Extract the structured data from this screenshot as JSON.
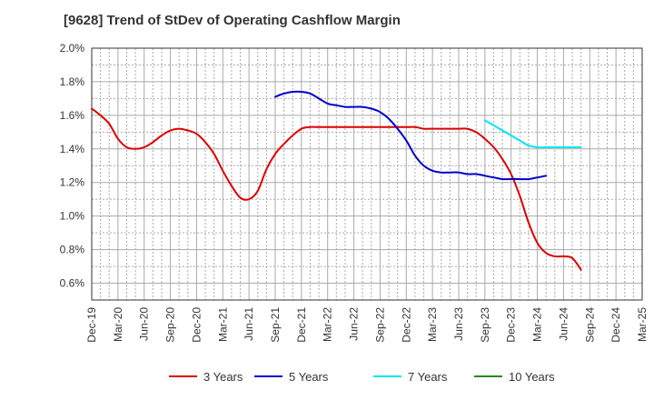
{
  "chart_data": {
    "type": "line",
    "title": "[9628]  Trend of StDev of Operating Cashflow Margin",
    "xlabel": "",
    "ylabel": "",
    "ylim": [
      0.5,
      2.0
    ],
    "y_ticks": [
      "2.0%",
      "1.8%",
      "1.6%",
      "1.4%",
      "1.2%",
      "1.0%",
      "0.8%",
      "0.6%"
    ],
    "x_ticks": [
      "Dec-19",
      "Mar-20",
      "Jun-20",
      "Sep-20",
      "Dec-20",
      "Mar-21",
      "Jun-21",
      "Sep-21",
      "Dec-21",
      "Mar-22",
      "Jun-22",
      "Sep-22",
      "Dec-22",
      "Mar-23",
      "Jun-23",
      "Sep-23",
      "Dec-23",
      "Mar-24",
      "Jun-24",
      "Sep-24",
      "Dec-24",
      "Mar-25"
    ],
    "grid": true,
    "legend_position": "bottom",
    "series": [
      {
        "name": "3 Years",
        "color": "#dd0000",
        "points": [
          [
            "Dec-19",
            1.64
          ],
          [
            "Jan-20",
            1.6
          ],
          [
            "Feb-20",
            1.55
          ],
          [
            "Mar-20",
            1.46
          ],
          [
            "Apr-20",
            1.41
          ],
          [
            "May-20",
            1.4
          ],
          [
            "Jun-20",
            1.41
          ],
          [
            "Jul-20",
            1.44
          ],
          [
            "Aug-20",
            1.48
          ],
          [
            "Sep-20",
            1.51
          ],
          [
            "Oct-20",
            1.52
          ],
          [
            "Nov-20",
            1.51
          ],
          [
            "Dec-20",
            1.49
          ],
          [
            "Jan-21",
            1.44
          ],
          [
            "Feb-21",
            1.37
          ],
          [
            "Mar-21",
            1.27
          ],
          [
            "Apr-21",
            1.18
          ],
          [
            "May-21",
            1.11
          ],
          [
            "Jun-21",
            1.1
          ],
          [
            "Jul-21",
            1.15
          ],
          [
            "Aug-21",
            1.28
          ],
          [
            "Sep-21",
            1.37
          ],
          [
            "Oct-21",
            1.43
          ],
          [
            "Nov-21",
            1.48
          ],
          [
            "Dec-21",
            1.52
          ],
          [
            "Jan-22",
            1.53
          ],
          [
            "Feb-22",
            1.53
          ],
          [
            "Mar-22",
            1.53
          ],
          [
            "Apr-22",
            1.53
          ],
          [
            "May-22",
            1.53
          ],
          [
            "Jun-22",
            1.53
          ],
          [
            "Jul-22",
            1.53
          ],
          [
            "Aug-22",
            1.53
          ],
          [
            "Sep-22",
            1.53
          ],
          [
            "Oct-22",
            1.53
          ],
          [
            "Nov-22",
            1.53
          ],
          [
            "Dec-22",
            1.53
          ],
          [
            "Jan-23",
            1.53
          ],
          [
            "Feb-23",
            1.52
          ],
          [
            "Mar-23",
            1.52
          ],
          [
            "Apr-23",
            1.52
          ],
          [
            "May-23",
            1.52
          ],
          [
            "Jun-23",
            1.52
          ],
          [
            "Jul-23",
            1.52
          ],
          [
            "Aug-23",
            1.5
          ],
          [
            "Sep-23",
            1.46
          ],
          [
            "Oct-23",
            1.41
          ],
          [
            "Nov-23",
            1.34
          ],
          [
            "Dec-23",
            1.25
          ],
          [
            "Jan-24",
            1.12
          ],
          [
            "Feb-24",
            0.96
          ],
          [
            "Mar-24",
            0.84
          ],
          [
            "Apr-24",
            0.78
          ],
          [
            "May-24",
            0.76
          ],
          [
            "Jun-24",
            0.76
          ],
          [
            "Jul-24",
            0.75
          ],
          [
            "Aug-24",
            0.68
          ]
        ]
      },
      {
        "name": "5 Years",
        "color": "#0000cc",
        "points": [
          [
            "Sep-21",
            1.71
          ],
          [
            "Oct-21",
            1.73
          ],
          [
            "Nov-21",
            1.74
          ],
          [
            "Dec-21",
            1.74
          ],
          [
            "Jan-22",
            1.73
          ],
          [
            "Feb-22",
            1.7
          ],
          [
            "Mar-22",
            1.67
          ],
          [
            "Apr-22",
            1.66
          ],
          [
            "May-22",
            1.65
          ],
          [
            "Jun-22",
            1.65
          ],
          [
            "Jul-22",
            1.65
          ],
          [
            "Aug-22",
            1.64
          ],
          [
            "Sep-22",
            1.62
          ],
          [
            "Oct-22",
            1.58
          ],
          [
            "Nov-22",
            1.52
          ],
          [
            "Dec-22",
            1.45
          ],
          [
            "Jan-23",
            1.36
          ],
          [
            "Feb-23",
            1.3
          ],
          [
            "Mar-23",
            1.27
          ],
          [
            "Apr-23",
            1.26
          ],
          [
            "May-23",
            1.26
          ],
          [
            "Jun-23",
            1.26
          ],
          [
            "Jul-23",
            1.25
          ],
          [
            "Aug-23",
            1.25
          ],
          [
            "Sep-23",
            1.24
          ],
          [
            "Oct-23",
            1.23
          ],
          [
            "Nov-23",
            1.22
          ],
          [
            "Dec-23",
            1.22
          ],
          [
            "Jan-24",
            1.22
          ],
          [
            "Feb-24",
            1.22
          ],
          [
            "Mar-24",
            1.23
          ],
          [
            "Apr-24",
            1.24
          ]
        ]
      },
      {
        "name": "7 Years",
        "color": "#00e5ee",
        "points": [
          [
            "Sep-23",
            1.57
          ],
          [
            "Oct-23",
            1.54
          ],
          [
            "Nov-23",
            1.51
          ],
          [
            "Dec-23",
            1.48
          ],
          [
            "Jan-24",
            1.45
          ],
          [
            "Feb-24",
            1.42
          ],
          [
            "Mar-24",
            1.41
          ],
          [
            "Apr-24",
            1.41
          ],
          [
            "May-24",
            1.41
          ],
          [
            "Jun-24",
            1.41
          ],
          [
            "Jul-24",
            1.41
          ],
          [
            "Aug-24",
            1.41
          ]
        ]
      },
      {
        "name": "10 Years",
        "color": "#228b22",
        "points": []
      }
    ]
  }
}
